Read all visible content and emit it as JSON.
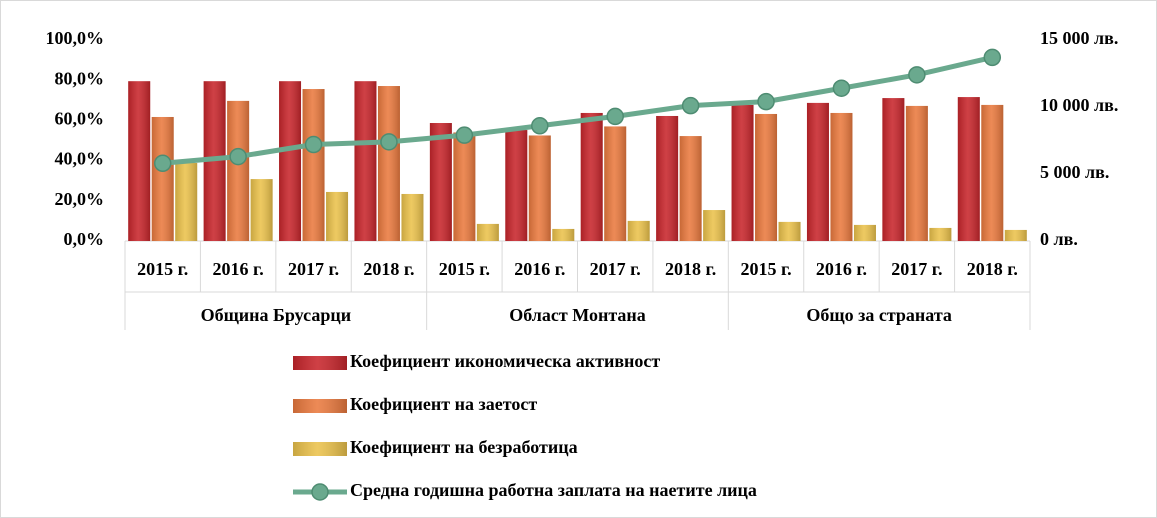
{
  "chart_data": {
    "type": "bar_line",
    "categories": [
      "2015 г.",
      "2016 г.",
      "2017 г.",
      "2018 г.",
      "2015 г.",
      "2016 г.",
      "2017 г.",
      "2018 г.",
      "2015 г.",
      "2016 г.",
      "2017 г.",
      "2018 г."
    ],
    "groups": [
      "Община Брусарци",
      "Област Монтана",
      "Общо за страната"
    ],
    "series": [
      {
        "name": "Коефициент икономическа активност",
        "color": "#c8262c",
        "values": [
          79.5,
          79.5,
          79.5,
          79.5,
          58.7,
          55.2,
          63.7,
          62.2,
          67.7,
          68.7,
          71.1,
          71.6
        ]
      },
      {
        "name": "Коефициент на заетост",
        "color": "#ea7a3f",
        "values": [
          61.7,
          69.7,
          75.6,
          77.1,
          54,
          52.5,
          57,
          52.2,
          63.2,
          63.7,
          67.2,
          67.7
        ]
      },
      {
        "name": "Коефициент на безработица",
        "color": "#ebc24c",
        "values": [
          38.8,
          30.8,
          24.4,
          23.4,
          8.5,
          6,
          10,
          15.4,
          9.5,
          8,
          6.5,
          5.5
        ]
      },
      {
        "name": "Средна годишна работна заплата на наетите лица",
        "color": "#6aa98e",
        "axis": "y2",
        "type": "line",
        "values": [
          5800,
          6300,
          7200,
          7400,
          7900,
          8600,
          9300,
          10100,
          10400,
          11400,
          12400,
          13700
        ]
      }
    ],
    "ylim": [
      0,
      100
    ],
    "yticks": [
      {
        "value": 0,
        "label": "0,0%"
      },
      {
        "value": 20,
        "label": "20,0%"
      },
      {
        "value": 40,
        "label": "40,0%"
      },
      {
        "value": 60,
        "label": "60,0%"
      },
      {
        "value": 80,
        "label": "80,0%"
      },
      {
        "value": 100,
        "label": "100,0%"
      }
    ],
    "y2lim": [
      0,
      15000
    ],
    "y2ticks": [
      {
        "value": 0,
        "label": "0 лв."
      },
      {
        "value": 5000,
        "label": "5 000 лв."
      },
      {
        "value": 10000,
        "label": "10 000 лв."
      },
      {
        "value": 15000,
        "label": "15 000 лв."
      }
    ],
    "grid": false,
    "legend": "bottom"
  }
}
